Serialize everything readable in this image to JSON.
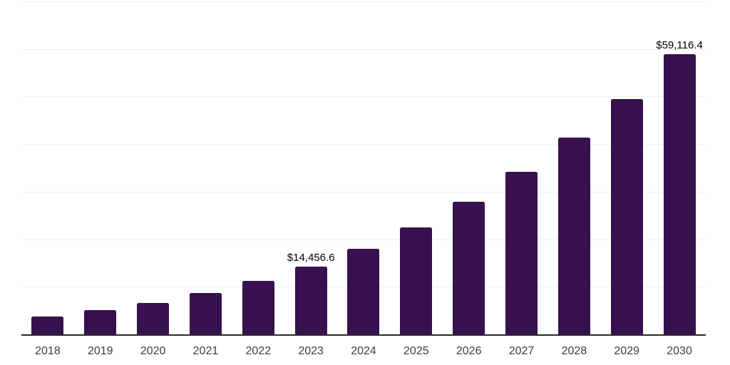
{
  "chart_data": {
    "type": "bar",
    "title": "",
    "xlabel": "",
    "ylabel": "",
    "categories": [
      "2018",
      "2019",
      "2020",
      "2021",
      "2022",
      "2023",
      "2024",
      "2025",
      "2026",
      "2027",
      "2028",
      "2029",
      "2030"
    ],
    "values": [
      3950,
      5300,
      6700,
      8850,
      11450,
      14456.6,
      18150,
      22650,
      28000,
      34350,
      41550,
      49600,
      59116.4
    ],
    "point_labels": {
      "2023": "$14,456.6",
      "2030": "$59,116.4"
    },
    "ylim": [
      0,
      70000
    ],
    "gridline_step": 10000,
    "grid": "horizontal gridlines only, no y-axis tick labels",
    "legend": "none",
    "colors": {
      "bar": "#36114d",
      "axis_line": "#2b2b2b",
      "gridline": "#f0f0f0",
      "tick_label": "#3d3d3d",
      "data_label": "#000000",
      "background": "#ffffff"
    }
  }
}
